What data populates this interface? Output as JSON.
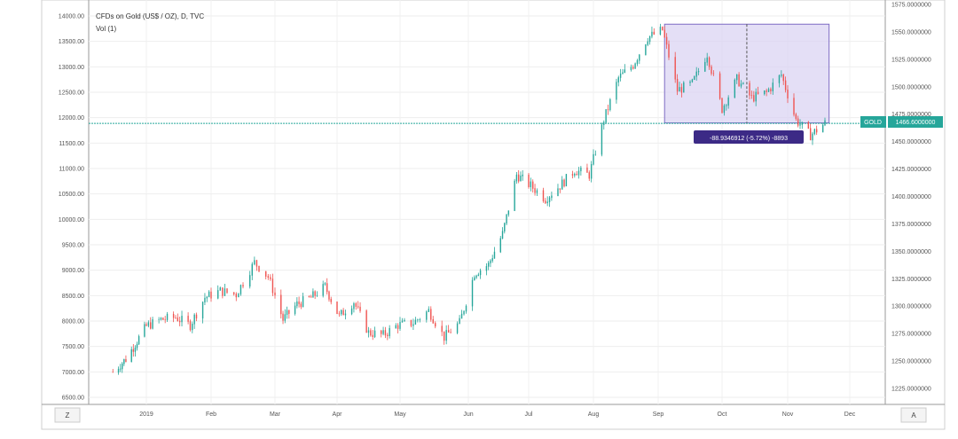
{
  "chart": {
    "title": "CFDs on Gold (US$ / OZ), D, TVC",
    "indicator": "Vol (1)",
    "price_tag_label": "GOLD",
    "price_tag_value": "1466.6000000",
    "measure_label": "-88.9346912 (-5.72%) -8893",
    "bottom_left_label": "Z",
    "bottom_right_label": "A",
    "colors": {
      "up": "#26a69a",
      "down": "#ef5350",
      "price_line": "#26a69a",
      "measure_fill": "#d9d2f2",
      "measure_border": "#7e6cc4",
      "measure_label_bg": "#3c2a86",
      "tag_bg": "#26a69a"
    }
  },
  "chart_data": {
    "type": "candlestick",
    "title": "CFDs on Gold (US$ / OZ), D, TVC",
    "xlabel": "",
    "ylabel": "",
    "left_ticks": [
      "14000.00",
      "13500.00",
      "13000.00",
      "12500.00",
      "12000.00",
      "11500.00",
      "11000.00",
      "10500.00",
      "10000.00",
      "9500.00",
      "9000.00",
      "8500.00",
      "8000.00",
      "7500.00",
      "7000.00",
      "6500.00"
    ],
    "right_ticks": [
      "1575.0000000",
      "1550.0000000",
      "1525.0000000",
      "1500.0000000",
      "1475.0000000",
      "1450.0000000",
      "1425.0000000",
      "1400.0000000",
      "1375.0000000",
      "1350.0000000",
      "1325.0000000",
      "1300.0000000",
      "1275.0000000",
      "1250.0000000",
      "1225.0000000"
    ],
    "x_ticks": [
      "2019",
      "Feb",
      "Mar",
      "Apr",
      "May",
      "Jun",
      "Jul",
      "Aug",
      "Sep",
      "Oct",
      "Nov",
      "Dec"
    ],
    "left_ylim": [
      6500,
      14000
    ],
    "right_ylim": [
      1225,
      1575
    ],
    "current_price": 1466.6,
    "measure_range": {
      "start": "Sep",
      "end": "mid Nov",
      "high": 1557,
      "low": 1467,
      "change": -88.9346912,
      "change_pct": -5.72
    },
    "price_path": [
      {
        "x": "Dec 14 2018",
        "y": 1240
      },
      {
        "x": "Dec 21 2018",
        "y": 1252
      },
      {
        "x": "Jan 1 2019",
        "y": 1282
      },
      {
        "x": "Jan 8 2019",
        "y": 1288
      },
      {
        "x": "Jan 15 2019",
        "y": 1290
      },
      {
        "x": "Jan 22 2019",
        "y": 1283
      },
      {
        "x": "Jan 29 2019",
        "y": 1308
      },
      {
        "x": "Feb 5 2019",
        "y": 1314
      },
      {
        "x": "Feb 12 2019",
        "y": 1311
      },
      {
        "x": "Feb 20 2019",
        "y": 1340
      },
      {
        "x": "Feb 26 2019",
        "y": 1327
      },
      {
        "x": "Mar 5 2019",
        "y": 1288
      },
      {
        "x": "Mar 12 2019",
        "y": 1302
      },
      {
        "x": "Mar 19 2019",
        "y": 1308
      },
      {
        "x": "Mar 26 2019",
        "y": 1318
      },
      {
        "x": "Apr 2 2019",
        "y": 1291
      },
      {
        "x": "Apr 9 2019",
        "y": 1304
      },
      {
        "x": "Apr 16 2019",
        "y": 1276
      },
      {
        "x": "Apr 23 2019",
        "y": 1274
      },
      {
        "x": "Apr 30 2019",
        "y": 1283
      },
      {
        "x": "May 7 2019",
        "y": 1285
      },
      {
        "x": "May 14 2019",
        "y": 1296
      },
      {
        "x": "May 21 2019",
        "y": 1272
      },
      {
        "x": "May 28 2019",
        "y": 1285
      },
      {
        "x": "Jun 4 2019",
        "y": 1330
      },
      {
        "x": "Jun 11 2019",
        "y": 1338
      },
      {
        "x": "Jun 18 2019",
        "y": 1366
      },
      {
        "x": "Jun 25 2019",
        "y": 1420
      },
      {
        "x": "Jul 2 2019",
        "y": 1410
      },
      {
        "x": "Jul 9 2019",
        "y": 1398
      },
      {
        "x": "Jul 16 2019",
        "y": 1410
      },
      {
        "x": "Jul 23 2019",
        "y": 1424
      },
      {
        "x": "Jul 30 2019",
        "y": 1420
      },
      {
        "x": "Aug 6 2019",
        "y": 1470
      },
      {
        "x": "Aug 13 2019",
        "y": 1508
      },
      {
        "x": "Aug 20 2019",
        "y": 1520
      },
      {
        "x": "Aug 27 2019",
        "y": 1545
      },
      {
        "x": "Sep 3 2019",
        "y": 1552
      },
      {
        "x": "Sep 10 2019",
        "y": 1497
      },
      {
        "x": "Sep 17 2019",
        "y": 1503
      },
      {
        "x": "Sep 24 2019",
        "y": 1530
      },
      {
        "x": "Oct 1 2019",
        "y": 1480
      },
      {
        "x": "Oct 8 2019",
        "y": 1507
      },
      {
        "x": "Oct 15 2019",
        "y": 1490
      },
      {
        "x": "Oct 22 2019",
        "y": 1495
      },
      {
        "x": "Oct 29 2019",
        "y": 1511
      },
      {
        "x": "Nov 5 2019",
        "y": 1470
      },
      {
        "x": "Nov 12 2019",
        "y": 1456
      },
      {
        "x": "Nov 19 2019",
        "y": 1467
      }
    ],
    "grid": true,
    "legend": "none"
  }
}
